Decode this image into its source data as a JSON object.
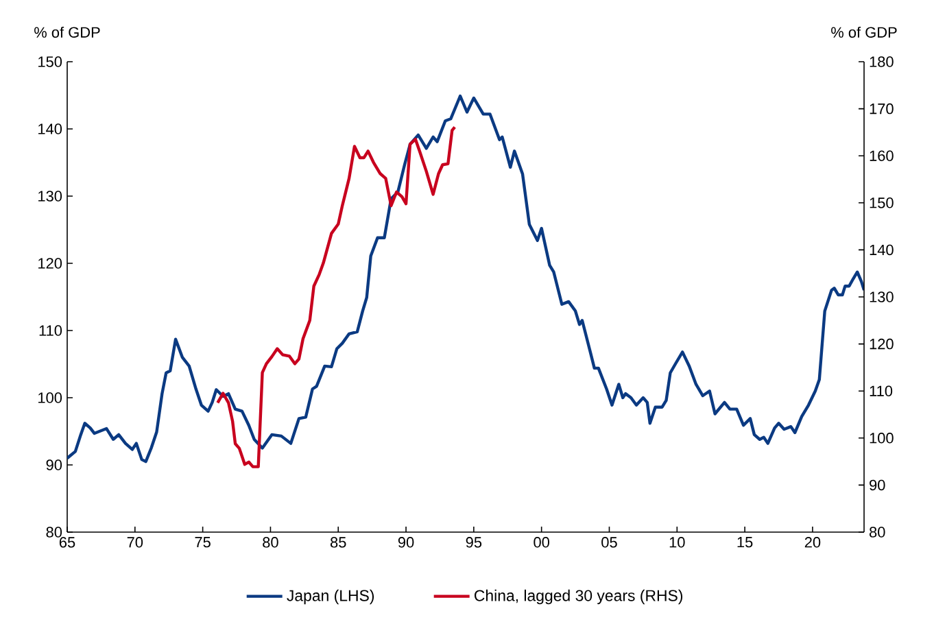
{
  "chart_data": {
    "type": "line",
    "ylabel": "% of GDP",
    "y2label": "% of GDP",
    "xlim": [
      1965,
      2023.8
    ],
    "xticks": [
      {
        "value": 1965,
        "label": "65"
      },
      {
        "value": 1970,
        "label": "70"
      },
      {
        "value": 1975,
        "label": "75"
      },
      {
        "value": 1980,
        "label": "80"
      },
      {
        "value": 1985,
        "label": "85"
      },
      {
        "value": 1990,
        "label": "90"
      },
      {
        "value": 1995,
        "label": "95"
      },
      {
        "value": 2000,
        "label": "00"
      },
      {
        "value": 2005,
        "label": "05"
      },
      {
        "value": 2010,
        "label": "10"
      },
      {
        "value": 2015,
        "label": "15"
      },
      {
        "value": 2020,
        "label": "20"
      }
    ],
    "ylim": [
      80,
      150
    ],
    "yticks": [
      80,
      90,
      100,
      110,
      120,
      130,
      140,
      150
    ],
    "y2lim": [
      80,
      180
    ],
    "y2ticks": [
      80,
      90,
      100,
      110,
      120,
      130,
      140,
      150,
      160,
      170,
      180
    ],
    "legend": "bottom",
    "series": [
      {
        "name": "Japan (LHS)",
        "color": "#0b3a82",
        "axis": "y",
        "x": [
          1965.0,
          1965.6,
          1966.0,
          1966.3,
          1966.7,
          1967.0,
          1967.9,
          1968.4,
          1968.8,
          1969.3,
          1969.8,
          1970.1,
          1970.5,
          1970.8,
          1971.2,
          1971.6,
          1972.0,
          1972.3,
          1972.6,
          1973.0,
          1973.5,
          1974.0,
          1974.5,
          1974.9,
          1975.4,
          1975.7,
          1976.0,
          1976.5,
          1976.9,
          1977.4,
          1977.9,
          1978.4,
          1978.8,
          1979.4,
          1980.1,
          1980.8,
          1981.5,
          1982.1,
          1982.6,
          1983.1,
          1983.4,
          1984.0,
          1984.5,
          1984.9,
          1985.3,
          1985.8,
          1986.4,
          1986.8,
          1987.1,
          1987.4,
          1987.9,
          1988.4,
          1988.9,
          1989.4,
          1989.9,
          1990.3,
          1990.9,
          1991.5,
          1992.0,
          1992.3,
          1992.9,
          1993.3,
          1994.0,
          1994.5,
          1995.0,
          1995.7,
          1996.2,
          1996.9,
          1997.1,
          1997.7,
          1998.0,
          1998.6,
          1999.1,
          1999.7,
          2000.0,
          2000.6,
          2000.9,
          2001.5,
          2002.0,
          2002.5,
          2002.8,
          2003.0,
          2003.6,
          2003.9,
          2004.2,
          2004.8,
          2005.2,
          2005.7,
          2006.0,
          2006.2,
          2006.6,
          2007.0,
          2007.5,
          2007.8,
          2008.0,
          2008.4,
          2008.9,
          2009.2,
          2009.5,
          2009.9,
          2010.4,
          2010.9,
          2011.4,
          2011.9,
          2012.4,
          2012.8,
          2013.5,
          2013.9,
          2014.4,
          2014.9,
          2015.4,
          2015.7,
          2016.1,
          2016.4,
          2016.7,
          2017.2,
          2017.5,
          2017.9,
          2018.4,
          2018.7,
          2019.2,
          2019.7,
          2020.2,
          2020.5,
          2020.9,
          2021.4,
          2021.6,
          2021.9,
          2022.2,
          2022.4,
          2022.7,
          2023.0,
          2023.3,
          2023.6,
          2023.8
        ],
        "values": [
          91.0,
          92.0,
          94.5,
          96.2,
          95.5,
          94.7,
          95.4,
          93.8,
          94.5,
          93.2,
          92.3,
          93.2,
          90.8,
          90.5,
          92.5,
          94.9,
          100.6,
          103.7,
          104.0,
          108.7,
          106.0,
          104.7,
          101.3,
          98.9,
          98.0,
          99.3,
          101.2,
          100.2,
          100.6,
          98.3,
          98.0,
          95.9,
          93.8,
          92.5,
          94.5,
          94.3,
          93.2,
          96.9,
          97.1,
          101.3,
          101.7,
          104.7,
          104.6,
          107.3,
          108.1,
          109.5,
          109.8,
          112.9,
          114.9,
          121.1,
          123.8,
          123.8,
          129.6,
          130.6,
          134.7,
          137.7,
          139.1,
          137.1,
          138.8,
          138.1,
          141.2,
          141.5,
          144.9,
          142.5,
          144.6,
          142.2,
          142.2,
          138.4,
          138.8,
          134.3,
          136.7,
          133.3,
          125.8,
          123.4,
          125.2,
          119.7,
          118.7,
          113.9,
          114.3,
          112.9,
          110.9,
          111.5,
          106.8,
          104.4,
          104.4,
          101.3,
          98.9,
          102.0,
          100.0,
          100.6,
          100.0,
          98.9,
          100.0,
          99.3,
          96.2,
          98.6,
          98.6,
          99.6,
          103.7,
          105.1,
          106.8,
          104.7,
          102.0,
          100.3,
          101.0,
          97.6,
          99.3,
          98.3,
          98.3,
          95.9,
          96.9,
          94.5,
          93.8,
          94.1,
          93.2,
          95.5,
          96.2,
          95.3,
          95.7,
          94.8,
          97.2,
          98.9,
          101.0,
          102.7,
          112.9,
          116.0,
          116.3,
          115.3,
          115.3,
          116.6,
          116.6,
          117.7,
          118.7,
          117.3,
          116.0
        ]
      },
      {
        "name": "China, lagged 30 years (RHS)",
        "color": "#c8001e",
        "axis": "y2",
        "x": [
          1976.1,
          1976.5,
          1976.9,
          1977.2,
          1977.4,
          1977.7,
          1978.1,
          1978.4,
          1978.7,
          1979.1,
          1979.4,
          1979.7,
          1980.1,
          1980.5,
          1980.9,
          1981.4,
          1981.8,
          1982.1,
          1982.4,
          1982.9,
          1983.2,
          1983.6,
          1983.9,
          1984.5,
          1985.0,
          1985.3,
          1985.8,
          1986.2,
          1986.6,
          1986.9,
          1987.2,
          1987.6,
          1988.1,
          1988.5,
          1988.9,
          1989.3,
          1989.7,
          1990.0,
          1990.3,
          1990.7,
          1991.0,
          1991.5,
          1992.0,
          1992.4,
          1992.7,
          1993.1,
          1993.4,
          1993.6
        ],
        "values": [
          107.5,
          109.5,
          107.5,
          103.6,
          98.8,
          97.8,
          94.4,
          94.9,
          93.9,
          93.9,
          113.9,
          115.8,
          117.3,
          119.0,
          117.7,
          117.4,
          115.8,
          116.8,
          121.1,
          125.0,
          132.3,
          134.8,
          137.2,
          143.5,
          145.5,
          149.4,
          155.2,
          162.0,
          159.6,
          159.6,
          161.0,
          158.6,
          156.2,
          155.2,
          149.4,
          152.3,
          151.3,
          149.8,
          162.5,
          163.5,
          161.0,
          156.7,
          151.8,
          156.2,
          158.1,
          158.3,
          165.4,
          166.1
        ]
      }
    ]
  }
}
